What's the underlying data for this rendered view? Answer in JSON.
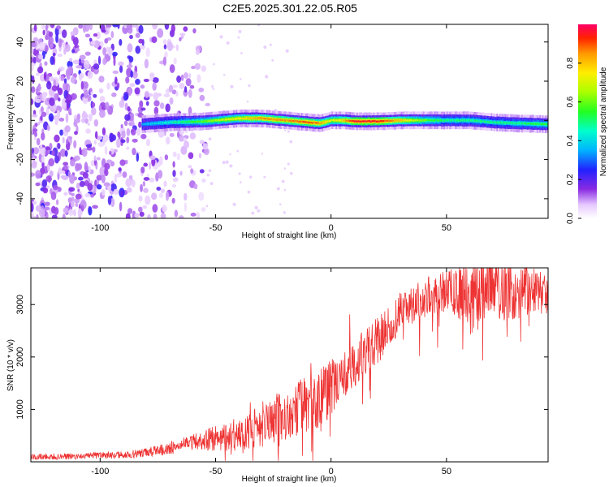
{
  "title": "C2E5.2025.301.22.05.R05",
  "chart_data": [
    {
      "type": "heatmap",
      "xlabel": "Height of straight line (km)",
      "ylabel": "Frequency (Hz)",
      "xlim": [
        -130,
        94
      ],
      "ylim": [
        -50,
        49
      ],
      "xticks": [
        -100,
        -50,
        0,
        50
      ],
      "yticks": [
        -40,
        -20,
        0,
        20,
        40
      ],
      "colorbar": {
        "label": "Normalized spectral amplitude",
        "range": [
          0,
          1
        ],
        "ticks": [
          0.0,
          0.2,
          0.4,
          0.6,
          0.8
        ],
        "tick_labels": [
          "0.0",
          "0.2",
          "0.4",
          "0.6",
          "0.8"
        ]
      },
      "ridge": {
        "description": "Narrow high-amplitude band near 0 Hz",
        "x": [
          -82,
          -70,
          -55,
          -40,
          -30,
          -20,
          -10,
          -5,
          0,
          5,
          10,
          20,
          30,
          40,
          50,
          60,
          70,
          80,
          94
        ],
        "freq": [
          -2,
          -1,
          -0.5,
          1,
          1,
          0,
          -1,
          -1.5,
          0,
          0,
          -0.5,
          -0.5,
          0,
          0,
          0,
          0,
          -1,
          -1.5,
          -2
        ],
        "amplitude": [
          0.35,
          0.45,
          0.6,
          0.75,
          0.85,
          0.85,
          0.9,
          0.85,
          0.7,
          0.8,
          0.95,
          0.95,
          0.8,
          0.6,
          0.5,
          0.5,
          0.5,
          0.5,
          0.55
        ]
      },
      "noise_region": {
        "x_range": [
          -130,
          -55
        ],
        "amplitude_range": [
          0.0,
          0.25
        ]
      }
    },
    {
      "type": "line",
      "xlabel": "Height of straight line (km)",
      "ylabel": "SNR (10 * v/v)",
      "xlim": [
        -130,
        94
      ],
      "ylim": [
        0,
        3700
      ],
      "xticks": [
        -100,
        -50,
        0,
        50
      ],
      "yticks": [
        1000,
        2000,
        3000
      ],
      "series": [
        {
          "name": "SNR",
          "color": "#ee3333",
          "x": [
            -130,
            -110,
            -90,
            -80,
            -70,
            -60,
            -50,
            -40,
            -30,
            -20,
            -10,
            0,
            10,
            20,
            30,
            40,
            50,
            60,
            70,
            80,
            94
          ],
          "y": [
            100,
            110,
            130,
            170,
            260,
            380,
            450,
            500,
            700,
            900,
            1100,
            1350,
            1900,
            2300,
            2850,
            3150,
            3250,
            3250,
            3300,
            3250,
            3200
          ],
          "noise_amplitude": [
            60,
            60,
            70,
            90,
            120,
            150,
            250,
            300,
            450,
            500,
            550,
            600,
            500,
            450,
            400,
            350,
            450,
            600,
            600,
            550,
            400
          ]
        }
      ]
    }
  ]
}
